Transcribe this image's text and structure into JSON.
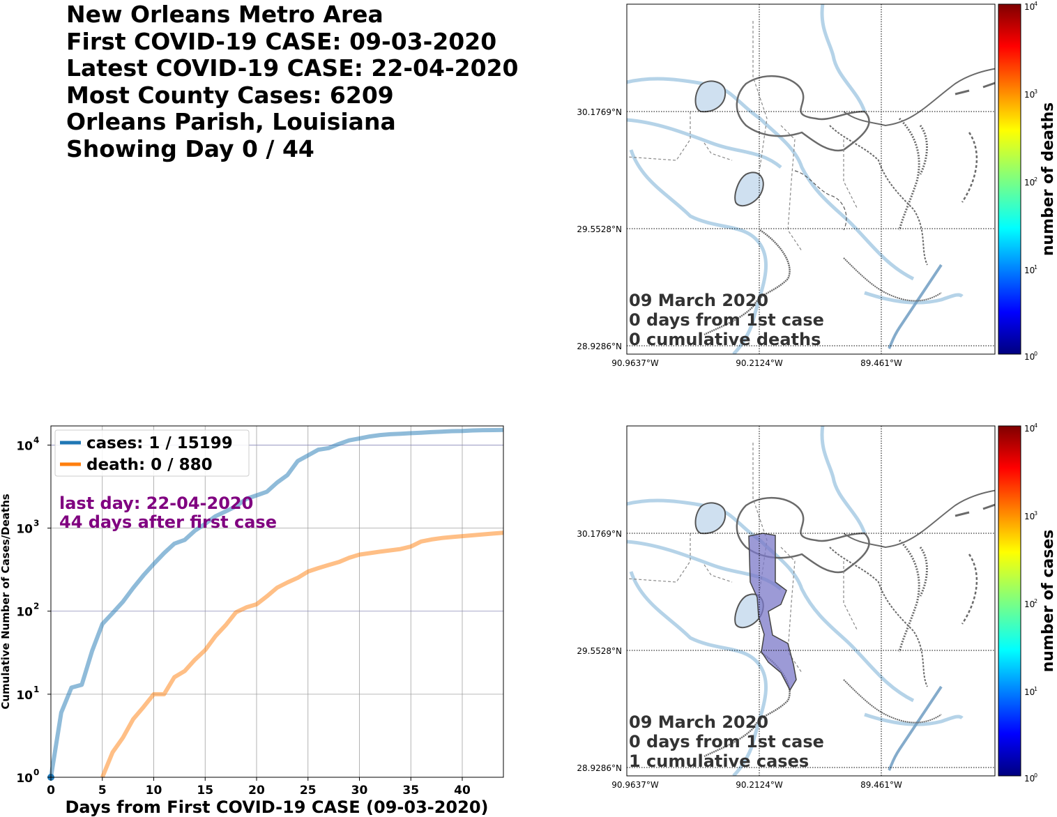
{
  "header": {
    "lines": [
      "New Orleans Metro Area",
      "First COVID-19 CASE: 09-03-2020",
      "Latest COVID-19 CASE: 22-04-2020",
      "Most County Cases: 6209",
      "Orleans Parish, Louisiana",
      "Showing Day 0 / 44"
    ]
  },
  "maps": {
    "lat_labels": [
      "30.1769°N",
      "29.5528°N",
      "28.9286°N"
    ],
    "lon_labels": [
      "90.9637°W",
      "90.2124°W",
      "89.461°W"
    ],
    "colormap": "jet",
    "deaths_map": {
      "annotation": [
        "09 March 2020",
        "0 days from 1st case",
        "0 cumulative deaths"
      ],
      "colorbar_label": "number of deaths",
      "colorbar_ticks": [
        "10",
        "10",
        "10",
        "10",
        "10"
      ],
      "colorbar_exps": [
        "4",
        "3",
        "2",
        "1",
        "0"
      ]
    },
    "cases_map": {
      "annotation": [
        "09 March 2020",
        "0 days from 1st case",
        "1 cumulative cases"
      ],
      "colorbar_label": "number of cases",
      "colorbar_ticks": [
        "10",
        "10",
        "10",
        "10",
        "10"
      ],
      "colorbar_exps": [
        "4",
        "3",
        "2",
        "1",
        "0"
      ],
      "highlight_color": "#7b78c8"
    }
  },
  "chart_data": {
    "type": "line",
    "xlabel": "Days from First COVID-19 CASE (09-03-2020)",
    "ylabel": "Cumulative Number of Cases/Deaths",
    "xlim": [
      0,
      44
    ],
    "ylim": [
      1,
      17000
    ],
    "yscale": "log",
    "grid": true,
    "legend_position": "top-left",
    "x_ticks": [
      "0",
      "5",
      "10",
      "15",
      "20",
      "25",
      "30",
      "35",
      "40"
    ],
    "y_tick_base": [
      "10",
      "10",
      "10",
      "10",
      "10"
    ],
    "y_tick_exps": [
      "0",
      "1",
      "2",
      "3",
      "4"
    ],
    "annotation": [
      "last day: 22-04-2020",
      "44 days after first case"
    ],
    "annotation_color": "#800080",
    "series": [
      {
        "name": "cases: 1 / 15199",
        "color": "#1f77b4",
        "x": [
          0,
          1,
          2,
          3,
          4,
          5,
          6,
          7,
          8,
          9,
          10,
          11,
          12,
          13,
          14,
          15,
          16,
          17,
          18,
          19,
          20,
          21,
          22,
          23,
          24,
          25,
          26,
          27,
          28,
          29,
          30,
          31,
          32,
          33,
          34,
          35,
          36,
          37,
          38,
          39,
          40,
          41,
          42,
          43,
          44
        ],
        "values": [
          1,
          6,
          12,
          13,
          33,
          70,
          95,
          130,
          190,
          270,
          370,
          500,
          650,
          720,
          930,
          1130,
          1390,
          1590,
          1830,
          2250,
          2480,
          2740,
          3540,
          4360,
          6420,
          7500,
          8800,
          9200,
          10300,
          11400,
          12000,
          12700,
          13200,
          13500,
          13700,
          13900,
          14100,
          14300,
          14500,
          14700,
          14800,
          15000,
          15100,
          15150,
          15199
        ]
      },
      {
        "name": "death: 0 / 880",
        "color": "#ff7f0e",
        "x": [
          5,
          6,
          7,
          8,
          9,
          10,
          11,
          12,
          13,
          14,
          15,
          16,
          17,
          18,
          19,
          20,
          21,
          22,
          23,
          24,
          25,
          26,
          27,
          28,
          29,
          30,
          31,
          32,
          33,
          34,
          35,
          36,
          37,
          38,
          39,
          40,
          41,
          42,
          43,
          44
        ],
        "values": [
          1,
          2,
          3,
          5,
          7,
          10,
          10,
          16,
          19,
          26,
          34,
          50,
          68,
          97,
          111,
          121,
          151,
          192,
          222,
          252,
          300,
          330,
          360,
          390,
          440,
          480,
          500,
          520,
          540,
          560,
          600,
          690,
          730,
          760,
          780,
          800,
          820,
          840,
          860,
          880
        ]
      }
    ]
  }
}
